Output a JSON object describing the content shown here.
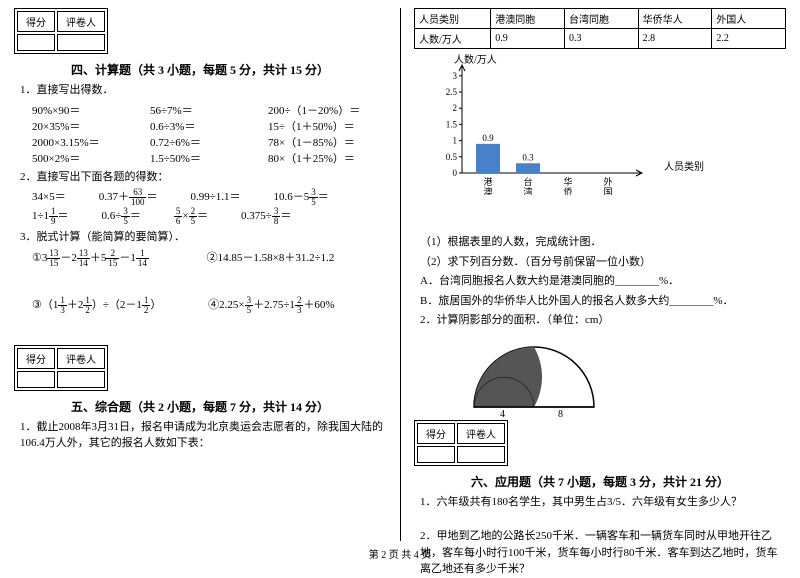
{
  "left": {
    "score_labels": [
      "得分",
      "评卷人"
    ],
    "section4_title": "四、计算题（共 3 小题，每题 5 分，共计 15 分）",
    "q1": "1．直接写出得数．",
    "q1_rows": [
      [
        "90%×90＝",
        "56÷7%＝",
        "200÷（1－20%）＝"
      ],
      [
        "20×35%＝",
        "0.6÷3%＝",
        "15÷（1＋50%）＝"
      ],
      [
        "2000×3.15%＝",
        "0.72÷6%＝",
        "78×（1－85%）＝"
      ],
      [
        "500×2%＝",
        "1.5÷50%＝",
        "80×（1＋25%）＝"
      ]
    ],
    "q2": "2．直接写出下面各题的得数：",
    "q3": "3．脱式计算（能简算的要简算）．",
    "q3b": "②14.85－1.58×8＋31.2÷1.2",
    "q3d": "④2.25×",
    "section5_title": "五、综合题（共 2 小题，每题 7 分，共计 14 分）",
    "q5_1": "1．截止2008年3月31日，报名申请成为北京奥运会志愿者的，除我国大陆的106.4万人外，其它的报名人数如下表："
  },
  "right": {
    "table_headers": [
      "人员类别",
      "港澳同胞",
      "台湾同胞",
      "华侨华人",
      "外国人"
    ],
    "table_row_label": "人数/万人",
    "table_values": [
      "0.9",
      "0.3",
      "2.8",
      "2.2"
    ],
    "chart": {
      "ylabel": "人数/万人",
      "xlabel": "人员类别",
      "ymax": 3.0,
      "ticks": [
        0,
        0.5,
        1,
        1.5,
        2,
        2.5,
        3
      ],
      "categories": [
        "港澳同胞",
        "台湾同胞",
        "华侨华人",
        "外国人"
      ],
      "bars": [
        0.9,
        0.3,
        null,
        null
      ],
      "bar_labels": [
        "0.9",
        "0.3",
        "",
        ""
      ],
      "bar_color": "#4a7fc9",
      "axis_color": "#000000"
    },
    "sub1": "（1）根据表里的人数，完成统计图．",
    "sub2": "（2）求下列百分数．（百分号前保留一位小数）",
    "subA": "A．台湾同胞报名人数大约是港澳同胞的________%．",
    "subB": "B．旅居国外的华侨华人比外国人的报名人数多大约________%．",
    "q2r": "2．计算阴影部分的面积．（单位：cm）",
    "semi_labels": [
      "4",
      "8"
    ],
    "section6_title": "六、应用题（共 7 小题，每题 3 分，共计 21 分）",
    "q6_1": "1．六年级共有180名学生，其中男生占3/5．六年级有女生多少人？",
    "q6_2": "2．甲地到乙地的公路长250千米．一辆客车和一辆货车同时从甲地开往乙地，客车每小时行100千米，货车每小时行80千米．客车到达乙地时，货车离乙地还有多少千米？"
  },
  "footer": "第 2 页 共 4 页"
}
